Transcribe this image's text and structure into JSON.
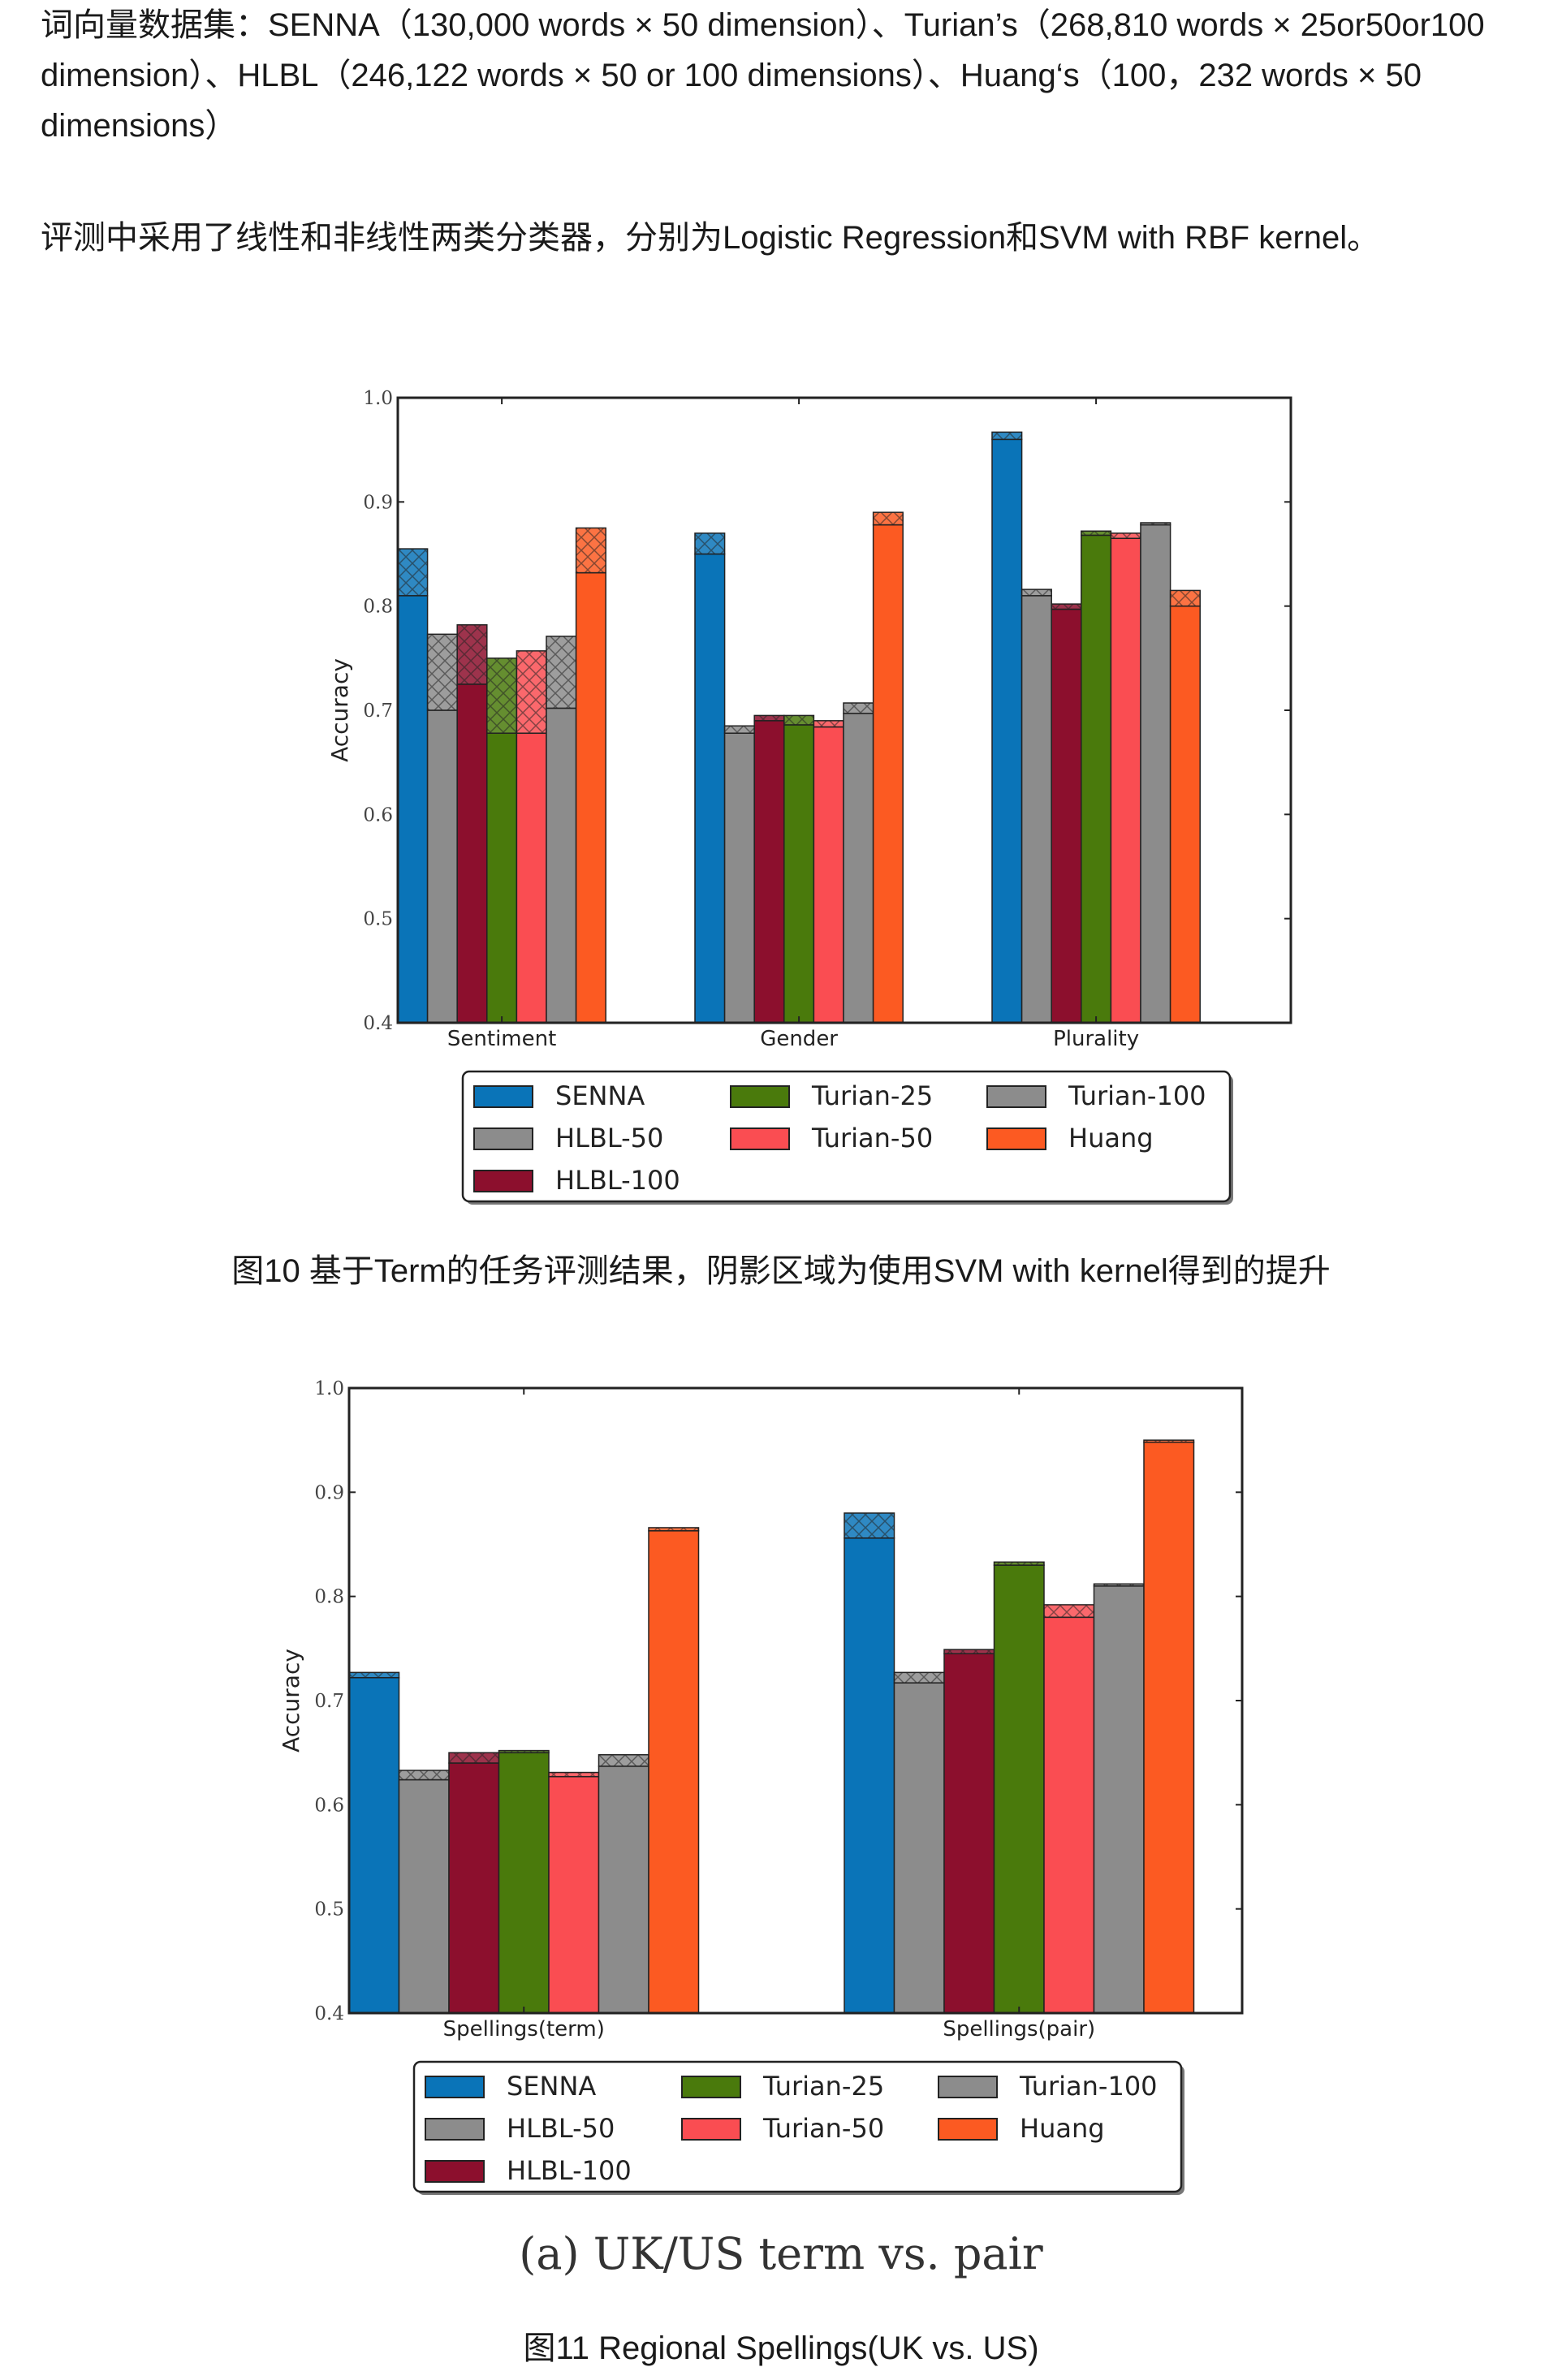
{
  "text": {
    "para1": "词向量数据集：SENNA（130,000 words × 50 dimension）、Turian’s（268,810 words × 25or50or100 dimension）、HLBL（246,122 words × 50 or 100 dimensions）、Huang‘s（100，232 words × 50 dimensions）",
    "para2": "评测中采用了线性和非线性两类分类器，分别为Logistic Regression和SVM with RBF kernel。",
    "caption1": "图10 基于Term的任务评测结果，阴影区域为使用SVM with kernel得到的提升",
    "subcaption2": "(a) UK/US term vs. pair",
    "caption2": "图11  Regional Spellings(UK vs. US)"
  },
  "legend_colors": {
    "SENNA": "#0a74b8",
    "HLBL-50": "#8c8c8c",
    "HLBL-100": "#8c0f2d",
    "Turian-25": "#4a7a0c",
    "Turian-50": "#fa4d52",
    "Turian-100": "#8c8c8c",
    "Huang": "#fc5a22"
  },
  "chart_data": [
    {
      "type": "bar",
      "variant": "stacked-improvement",
      "ylabel": "Accuracy",
      "ylim": [
        0.4,
        1.0
      ],
      "yticks": [
        "0.4",
        "0.5",
        "0.6",
        "0.7",
        "0.8",
        "0.9",
        "1.0"
      ],
      "categories": [
        "Sentiment",
        "Gender",
        "Plurality"
      ],
      "legend": [
        "SENNA",
        "Turian-25",
        "Turian-100",
        "HLBL-50",
        "Turian-50",
        "Huang",
        "HLBL-100"
      ],
      "series": [
        {
          "name": "SENNA",
          "base": [
            0.81,
            0.85,
            0.96
          ],
          "top": [
            0.855,
            0.87,
            0.967
          ]
        },
        {
          "name": "HLBL-50",
          "base": [
            0.7,
            0.678,
            0.81
          ],
          "top": [
            0.773,
            0.685,
            0.816
          ]
        },
        {
          "name": "HLBL-100",
          "base": [
            0.725,
            0.69,
            0.797
          ],
          "top": [
            0.782,
            0.695,
            0.802
          ]
        },
        {
          "name": "Turian-25",
          "base": [
            0.678,
            0.686,
            0.868
          ],
          "top": [
            0.75,
            0.695,
            0.872
          ]
        },
        {
          "name": "Turian-50",
          "base": [
            0.678,
            0.684,
            0.865
          ],
          "top": [
            0.757,
            0.69,
            0.87
          ]
        },
        {
          "name": "Turian-100",
          "base": [
            0.702,
            0.697,
            0.878
          ],
          "top": [
            0.771,
            0.707,
            0.88
          ]
        },
        {
          "name": "Huang",
          "base": [
            0.832,
            0.878,
            0.8
          ],
          "top": [
            0.875,
            0.89,
            0.815
          ]
        }
      ]
    },
    {
      "type": "bar",
      "variant": "stacked-improvement",
      "ylabel": "Accuracy",
      "ylim": [
        0.4,
        1.0
      ],
      "yticks": [
        "0.4",
        "0.5",
        "0.6",
        "0.7",
        "0.8",
        "0.9",
        "1.0"
      ],
      "categories": [
        "Spellings(term)",
        "Spellings(pair)"
      ],
      "legend": [
        "SENNA",
        "Turian-25",
        "Turian-100",
        "HLBL-50",
        "Turian-50",
        "Huang",
        "HLBL-100"
      ],
      "series": [
        {
          "name": "SENNA",
          "base": [
            0.722,
            0.856
          ],
          "top": [
            0.727,
            0.88
          ]
        },
        {
          "name": "HLBL-50",
          "base": [
            0.624,
            0.717
          ],
          "top": [
            0.633,
            0.727
          ]
        },
        {
          "name": "HLBL-100",
          "base": [
            0.64,
            0.745
          ],
          "top": [
            0.65,
            0.749
          ]
        },
        {
          "name": "Turian-25",
          "base": [
            0.65,
            0.83
          ],
          "top": [
            0.652,
            0.833
          ]
        },
        {
          "name": "Turian-50",
          "base": [
            0.627,
            0.78
          ],
          "top": [
            0.631,
            0.792
          ]
        },
        {
          "name": "Turian-100",
          "base": [
            0.637,
            0.81
          ],
          "top": [
            0.648,
            0.812
          ]
        },
        {
          "name": "Huang",
          "base": [
            0.863,
            0.948
          ],
          "top": [
            0.866,
            0.95
          ]
        }
      ]
    }
  ]
}
